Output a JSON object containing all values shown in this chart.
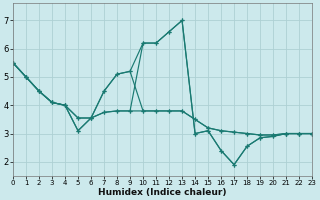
{
  "xlabel": "Humidex (Indice chaleur)",
  "bg_color": "#cce9ec",
  "grid_color": "#aed0d4",
  "line_color": "#1a7a72",
  "xlim": [
    0,
    23
  ],
  "ylim": [
    1.5,
    7.6
  ],
  "yticks": [
    2,
    3,
    4,
    5,
    6,
    7
  ],
  "xticks": [
    0,
    1,
    2,
    3,
    4,
    5,
    6,
    7,
    8,
    9,
    10,
    11,
    12,
    13,
    14,
    15,
    16,
    17,
    18,
    19,
    20,
    21,
    22,
    23
  ],
  "series": [
    [
      5.5,
      5.0,
      4.5,
      4.1,
      4.0,
      3.55,
      3.55,
      3.75,
      3.8,
      3.8,
      3.8,
      3.8,
      3.8,
      3.8,
      3.5,
      3.2,
      3.1,
      3.05,
      3.0,
      2.95,
      2.95,
      3.0,
      3.0,
      3.0
    ],
    [
      5.5,
      5.0,
      4.5,
      4.1,
      4.0,
      3.55,
      3.55,
      3.75,
      3.8,
      3.8,
      6.2,
      6.2,
      6.6,
      7.0,
      3.0,
      3.1,
      2.4,
      1.9,
      2.55,
      2.85,
      2.9,
      3.0,
      3.0,
      3.0
    ],
    [
      5.5,
      5.0,
      4.5,
      4.1,
      4.0,
      3.1,
      3.55,
      4.5,
      5.1,
      5.2,
      6.2,
      6.2,
      6.6,
      7.0,
      3.0,
      3.1,
      2.4,
      1.9,
      2.55,
      2.85,
      2.9,
      3.0,
      3.0,
      3.0
    ],
    [
      5.5,
      5.0,
      4.5,
      4.1,
      4.0,
      3.1,
      3.55,
      4.5,
      5.1,
      5.2,
      3.8,
      3.8,
      3.8,
      3.8,
      3.5,
      3.2,
      3.1,
      3.05,
      3.0,
      2.95,
      2.95,
      3.0,
      3.0,
      3.0
    ]
  ],
  "figsize": [
    3.2,
    2.0
  ],
  "dpi": 100
}
